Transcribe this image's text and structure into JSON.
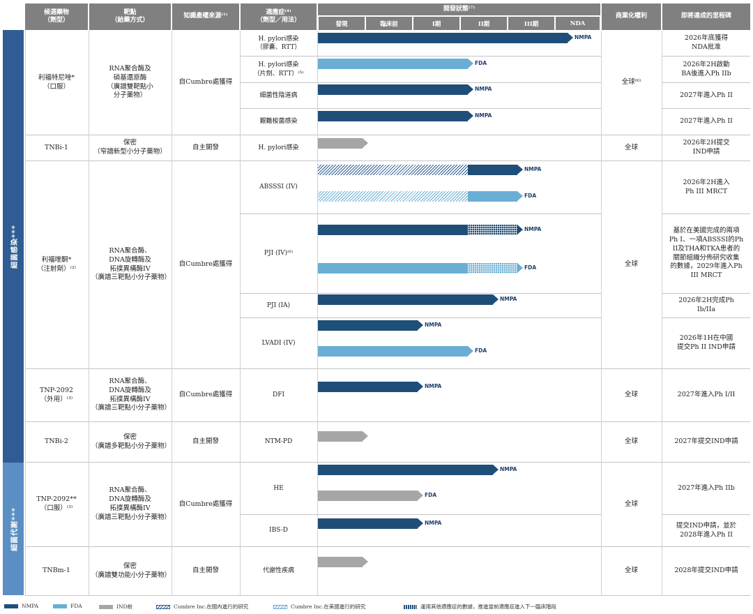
{
  "headers": {
    "candidate": "候選藥物\n（劑型）",
    "target": "靶點\n（給藥方式）",
    "ip": "知識產權來源⁽¹⁾",
    "indication": "適應症⁽⁴⁾\n（劑型／用法）",
    "status": "開發狀態⁽⁷⁾",
    "rights": "商業化權利",
    "milestone": "即將達成的里程碑"
  },
  "phases": [
    "發現",
    "臨床前",
    "I期",
    "II期",
    "III期",
    "NDA"
  ],
  "bands": [
    {
      "label": "細菌感染***",
      "color": "#2f5d93"
    },
    {
      "label": "細菌代謝***",
      "color": "#5b8fc4"
    }
  ],
  "groups": [
    {
      "candidate": "利福特尼唑*\n（口服）",
      "target": "RNA聚合酶及\n硝基還原酶\n（廣譜雙靶點小\n分子藥物）",
      "ip": "自Cumbre處獲得",
      "rights": "全球⁽⁶⁾"
    },
    {
      "candidate": "TNBi-1",
      "target": "保密\n（窄譜新型小分子藥物）",
      "ip": "自主開發",
      "rights": "全球"
    },
    {
      "candidate": "利福喹酮*\n（注射劑）⁽²⁾",
      "target": "RNA聚合酶、\nDNA旋轉酶及\n拓撲異構酶IV\n（廣譜三靶點小分子藥物）",
      "ip": "自Cumbre處獲得",
      "rights": "全球"
    },
    {
      "candidate": "TNP-2092\n（外用）⁽³⁾",
      "target": "RNA聚合酶、\nDNA旋轉酶及\n拓撲異構酶IV\n（廣譜三靶點小分子藥物）",
      "ip": "自Cumbre處獲得",
      "rights": "全球"
    },
    {
      "candidate": "TNBi-2",
      "target": "保密\n（廣譜多靶點小分子藥物）",
      "ip": "自主開發",
      "rights": "全球"
    },
    {
      "candidate": "TNP-2092**\n（口服）⁽³⁾",
      "target": "RNA聚合酶、\nDNA旋轉酶及\n拓撲異構酶IV\n（廣譜三靶點小分子藥物）",
      "ip": "自Cumbre處獲得",
      "rights": "全球"
    },
    {
      "candidate": "TNBm-1",
      "target": "保密\n（廣譜雙功能小分子藥物）",
      "ip": "自主開發",
      "rights": "全球"
    }
  ],
  "indications": [
    {
      "label": "H. pylori感染\n（膠囊、RTT）"
    },
    {
      "label": "H. pylori感染\n（片劑、RTT）⁽⁵⁾"
    },
    {
      "label": "細菌性陰道病"
    },
    {
      "label": "艱難梭菌感染"
    },
    {
      "label": "H. pylori感染"
    },
    {
      "label": "ABSSSI (IV)"
    },
    {
      "label": "PJI (IV)⁽⁶⁾"
    },
    {
      "label": "PJI (IA)"
    },
    {
      "label": "LVADI (IV)"
    },
    {
      "label": "DFI"
    },
    {
      "label": "NTM-PD"
    },
    {
      "label": "HE"
    },
    {
      "label": "IBS-D"
    },
    {
      "label": "代謝性疾病"
    }
  ],
  "milestones": [
    "2026年底獲得\nNDA批准",
    "2026年2H啟動\nBA後進入Ph IIb",
    "2027年進入Ph II",
    "2027年進入Ph II",
    "2026年2H提交\nIND申請",
    "2026年2H進入\nPh III MRCT",
    "基於在美國完成的兩項\nPh I、一項ABSSSI的Ph\nII及THA和TKA患者的\n關節組織分佈研究收集\n的數據，2029年進入Ph\nIII MRCT",
    "2026年2H完成Ph\nIb/IIa",
    "2026年1H在中國\n提交Ph II IND申請",
    "2027年進入Ph I/II",
    "2027年提交IND申請",
    "2027年進入Ph IIb",
    "提交IND申請，並於\n2028年進入Ph II",
    "2028年提交IND申請"
  ],
  "bars": [
    {
      "type": "NMPA",
      "label": "NMPA",
      "progress": 1.0
    },
    {
      "type": "FDA",
      "label": "FDA",
      "progress": 0.6
    },
    {
      "type": "NMPA",
      "label": "NMPA",
      "progress": 0.6
    },
    {
      "type": "NMPA",
      "label": "NMPA",
      "progress": 0.6
    },
    {
      "type": "IND",
      "label": "",
      "progress": 0.18
    },
    {
      "type": "NMPA",
      "label": "NMPA",
      "progress": 0.8,
      "hatch_to": 0.6,
      "hatch": "china"
    },
    {
      "type": "FDA",
      "label": "FDA",
      "progress": 0.8,
      "hatch_to": 0.6,
      "hatch": "us"
    },
    {
      "type": "NMPA",
      "label": "NMPA",
      "progress": 0.8,
      "cross_from": 0.6
    },
    {
      "type": "FDA",
      "label": "FDA",
      "progress": 0.8,
      "cross_from": 0.6
    },
    {
      "type": "NMPA",
      "label": "NMPA",
      "progress": 0.7
    },
    {
      "type": "NMPA",
      "label": "NMPA",
      "progress": 0.4
    },
    {
      "type": "FDA",
      "label": "FDA",
      "progress": 0.6
    },
    {
      "type": "NMPA",
      "label": "NMPA",
      "progress": 0.4
    },
    {
      "type": "IND",
      "label": "",
      "progress": 0.18
    },
    {
      "type": "NMPA",
      "label": "NMPA",
      "progress": 0.7
    },
    {
      "type": "IND",
      "label": "FDA",
      "progress": 0.4
    },
    {
      "type": "NMPA",
      "label": "NMPA",
      "progress": 0.4
    },
    {
      "type": "IND",
      "label": "",
      "progress": 0.18
    }
  ],
  "legend": [
    {
      "key": "NMPA",
      "label": "NMPA"
    },
    {
      "key": "FDA",
      "label": "FDA"
    },
    {
      "key": "IND",
      "label": "IND前"
    },
    {
      "key": "china",
      "label": "Cumbre Inc.在國內進行的研究"
    },
    {
      "key": "us",
      "label": "Cumbre Inc.在美國進行的研究"
    },
    {
      "key": "cross",
      "label": "運用其他適應症的數據，推進當前適應症進入下一臨床階段"
    }
  ],
  "colors": {
    "NMPA": "#1f4e79",
    "FDA": "#6aaed6",
    "IND": "#a6a6a6",
    "header": "#808080"
  }
}
